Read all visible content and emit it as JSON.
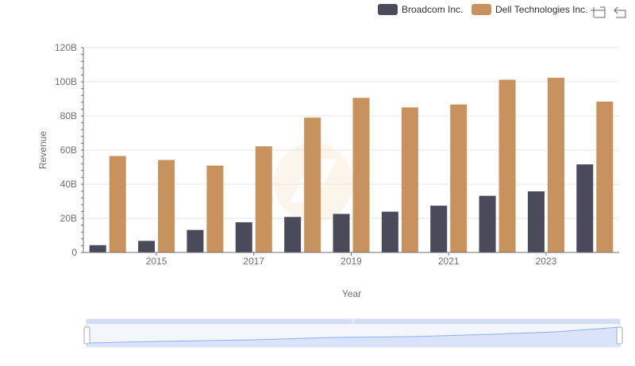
{
  "toolbar": {
    "zoom_icon": "data-zoom-icon",
    "reset_icon": "zoom-reset-icon"
  },
  "colors": {
    "broadcom": "#4a4a5a",
    "dell": "#c8925e",
    "grid": "#e6e6e6",
    "axis": "#6e7079",
    "slider_fill": "#dfe7fb",
    "slider_line": "#8fb0f7"
  },
  "chart_data": {
    "type": "bar",
    "xlabel": "Year",
    "ylabel": "Revenue",
    "ylim": [
      0,
      120000000000
    ],
    "y_ticks": [
      0,
      20000000000,
      40000000000,
      60000000000,
      80000000000,
      100000000000,
      120000000000
    ],
    "y_tick_labels": [
      "0",
      "20B",
      "40B",
      "60B",
      "80B",
      "100B",
      "120B"
    ],
    "categories": [
      "2014",
      "2015",
      "2016",
      "2017",
      "2018",
      "2019",
      "2020",
      "2021",
      "2022",
      "2023",
      "2024"
    ],
    "x_tick_labels": [
      "2015",
      "2017",
      "2019",
      "2021",
      "2023"
    ],
    "legend_position": "top-right",
    "grid": true,
    "series": [
      {
        "name": "Broadcom Inc.",
        "values": [
          4300000000,
          6800000000,
          13200000000,
          17700000000,
          20800000000,
          22600000000,
          23900000000,
          27400000000,
          33200000000,
          35800000000,
          51600000000
        ]
      },
      {
        "name": "Dell Technologies Inc.",
        "values": [
          56500000000,
          54200000000,
          50900000000,
          62200000000,
          79000000000,
          90600000000,
          85000000000,
          86700000000,
          101200000000,
          102300000000,
          88400000000
        ]
      }
    ]
  }
}
